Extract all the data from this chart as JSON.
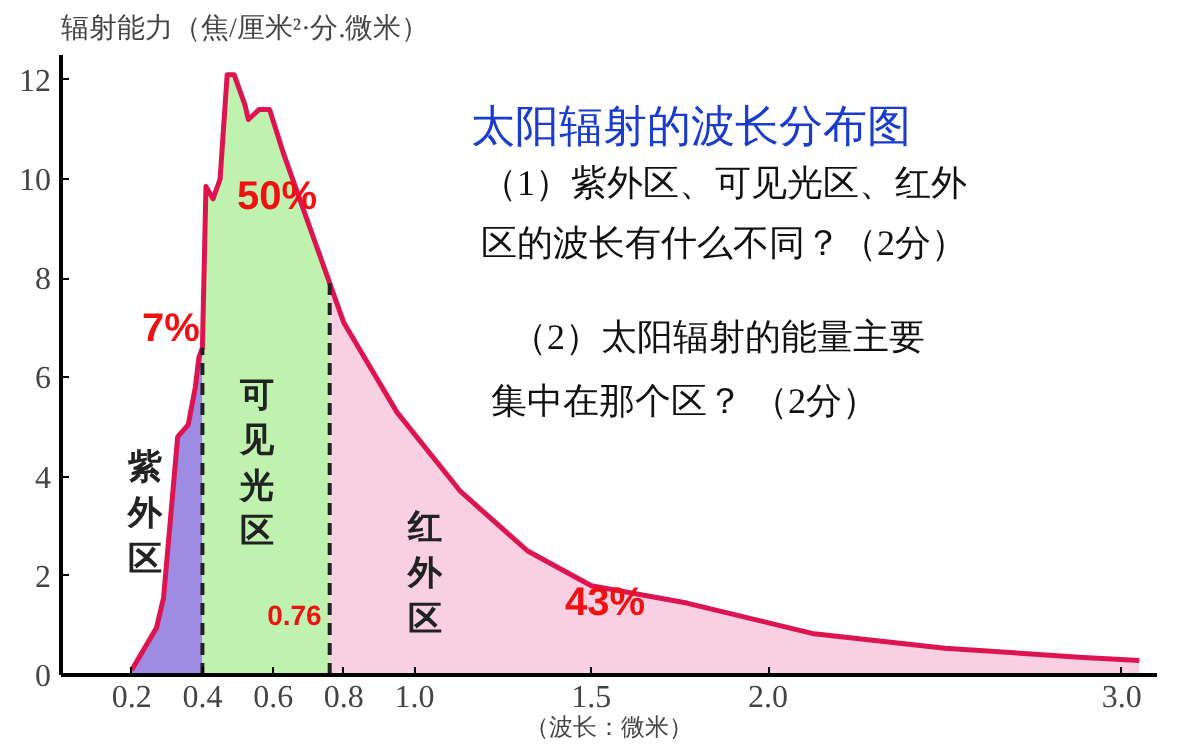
{
  "chart_data": {
    "type": "area",
    "title": "太阳辐射的波长分布图",
    "ylabel": "辐射能力（焦/厘米²·分.微米）",
    "xlabel": "（波长：微米）",
    "xlim": [
      0,
      3.1
    ],
    "ylim": [
      0,
      12.5
    ],
    "xticks": [
      0.2,
      0.4,
      0.6,
      0.8,
      {
        "value": 1,
        "label": "1.0"
      },
      1.5,
      {
        "value": 2,
        "label": "2.0"
      },
      {
        "value": 3,
        "label": "3.0"
      }
    ],
    "yticks": [
      0,
      2,
      4,
      6,
      8,
      10,
      12
    ],
    "grid": false,
    "series": [
      {
        "color": "#8c78dc",
        "x": [
          0.2,
          0.27,
          0.29,
          0.33,
          0.36,
          0.38,
          0.39,
          0.4
        ],
        "values": [
          0.1,
          0.95,
          1.55,
          4.8,
          5.05,
          5.8,
          6.4,
          6.6
        ]
      },
      {
        "color": "#b4f0a0",
        "x": [
          0.4,
          0.41,
          0.43,
          0.45,
          0.47,
          0.49,
          0.52,
          0.53,
          0.56,
          0.59,
          0.63,
          0.71,
          0.76
        ],
        "values": [
          6.6,
          9.85,
          9.6,
          10.0,
          12.1,
          12.1,
          11.5,
          11.2,
          11.4,
          11.4,
          10.5,
          8.9,
          7.9
        ]
      },
      {
        "color": "#f8c8dc",
        "x": [
          0.76,
          0.8,
          0.95,
          1.13,
          1.32,
          1.5,
          1.77,
          2.13,
          2.5,
          2.88,
          3.05
        ],
        "values": [
          7.9,
          7.1,
          5.3,
          3.7,
          2.5,
          1.8,
          1.45,
          0.83,
          0.54,
          0.36,
          0.29
        ]
      },
      {
        "type": "line",
        "color": "#dc1450",
        "x": [
          0.2,
          0.27,
          0.29,
          0.33,
          0.36,
          0.38,
          0.39,
          0.4,
          0.41,
          0.43,
          0.45,
          0.47,
          0.49,
          0.52,
          0.53,
          0.56,
          0.59,
          0.63,
          0.71,
          0.76,
          0.8,
          0.95,
          1.13,
          1.32,
          1.5,
          1.77,
          2.13,
          2.5,
          2.88,
          3.05
        ],
        "values": [
          0.1,
          0.95,
          1.55,
          4.8,
          5.05,
          5.8,
          6.4,
          6.6,
          9.85,
          9.6,
          10.0,
          12.1,
          12.1,
          11.5,
          11.2,
          11.4,
          11.4,
          10.5,
          8.9,
          7.9,
          7.1,
          5.3,
          3.7,
          2.5,
          1.8,
          1.45,
          0.83,
          0.54,
          0.36,
          0.29
        ]
      }
    ],
    "ref_lines": [
      {
        "axis": "x",
        "value": 0.4,
        "line_style": "dashed"
      },
      {
        "axis": "x",
        "value": 0.76,
        "label": "0.76",
        "line_style": "dashed"
      }
    ],
    "annotations": [
      "7%",
      "50%",
      "43%",
      "紫外区",
      "可见光区",
      "红外区",
      "（1）紫外区、可见光区、红外",
      "区的波长有什么不同？（2分）",
      "（2）太阳辐射的能量主要",
      "集中在那个区？    （2分）"
    ]
  }
}
